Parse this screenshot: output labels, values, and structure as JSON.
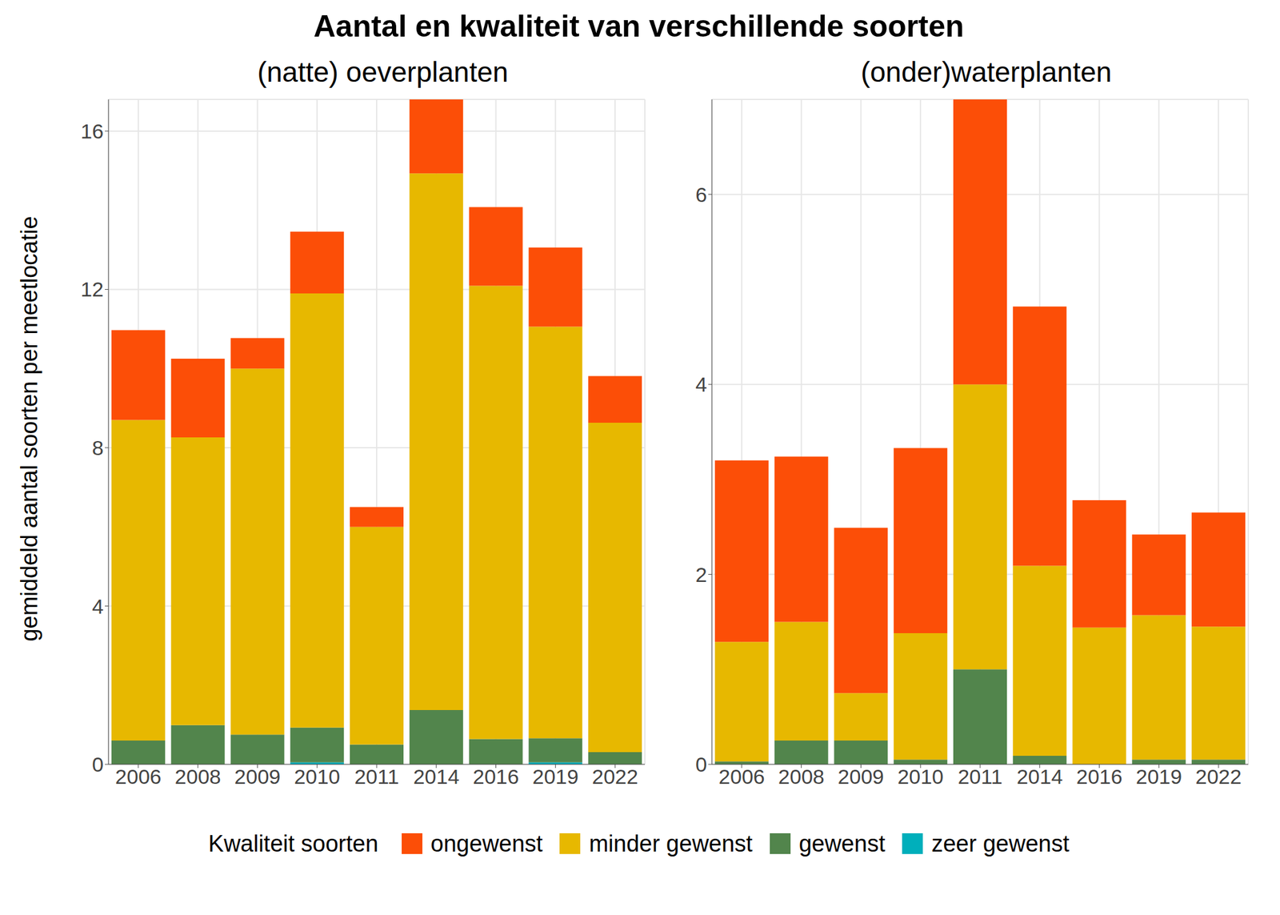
{
  "title": "Aantal en kwaliteit van verschillende soorten",
  "ylabel": "gemiddeld aantal soorten per meetlocatie",
  "legend_title": "Kwaliteit soorten",
  "legend": "bottom",
  "chart_data": [
    {
      "type": "bar",
      "subtitle": "(natte) oeverplanten",
      "stacked": true,
      "grid": true,
      "categories": [
        "2006",
        "2008",
        "2009",
        "2010",
        "2011",
        "2014",
        "2016",
        "2019",
        "2022"
      ],
      "ylim": [
        0,
        16.8
      ],
      "yticks": [
        0,
        4,
        8,
        12,
        16
      ],
      "series": [
        {
          "name": "ongewenst",
          "color": "#FC4E07",
          "values": [
            2.27,
            1.99,
            0.77,
            1.56,
            0.5,
            1.87,
            1.99,
            2.0,
            1.18
          ]
        },
        {
          "name": "minder gewenst",
          "color": "#E7B800",
          "values": [
            8.1,
            7.27,
            9.25,
            10.97,
            5.5,
            13.56,
            11.45,
            10.4,
            8.32
          ]
        },
        {
          "name": "gewenst",
          "color": "#52854C",
          "values": [
            0.6,
            0.99,
            0.75,
            0.88,
            0.5,
            1.37,
            0.64,
            0.61,
            0.31
          ]
        },
        {
          "name": "zeer gewenst",
          "color": "#00AFBB",
          "values": [
            0,
            0,
            0,
            0.05,
            0,
            0,
            0,
            0.05,
            0
          ]
        }
      ]
    },
    {
      "type": "bar",
      "subtitle": "(onder)waterplanten",
      "stacked": true,
      "grid": true,
      "categories": [
        "2006",
        "2008",
        "2009",
        "2010",
        "2011",
        "2014",
        "2016",
        "2019",
        "2022"
      ],
      "ylim": [
        0,
        7
      ],
      "yticks": [
        0,
        2,
        4,
        6
      ],
      "series": [
        {
          "name": "ongewenst",
          "color": "#FC4E07",
          "values": [
            1.91,
            1.74,
            1.74,
            1.95,
            3.0,
            2.73,
            1.34,
            0.85,
            1.2
          ]
        },
        {
          "name": "minder gewenst",
          "color": "#E7B800",
          "values": [
            1.26,
            1.25,
            0.5,
            1.33,
            3.0,
            2.0,
            1.44,
            1.52,
            1.4
          ]
        },
        {
          "name": "gewenst",
          "color": "#52854C",
          "values": [
            0.03,
            0.25,
            0.25,
            0.05,
            1.0,
            0.09,
            0,
            0.05,
            0.05
          ]
        },
        {
          "name": "zeer gewenst",
          "color": "#00AFBB",
          "values": [
            0,
            0,
            0,
            0,
            0,
            0,
            0,
            0,
            0
          ]
        }
      ]
    }
  ]
}
